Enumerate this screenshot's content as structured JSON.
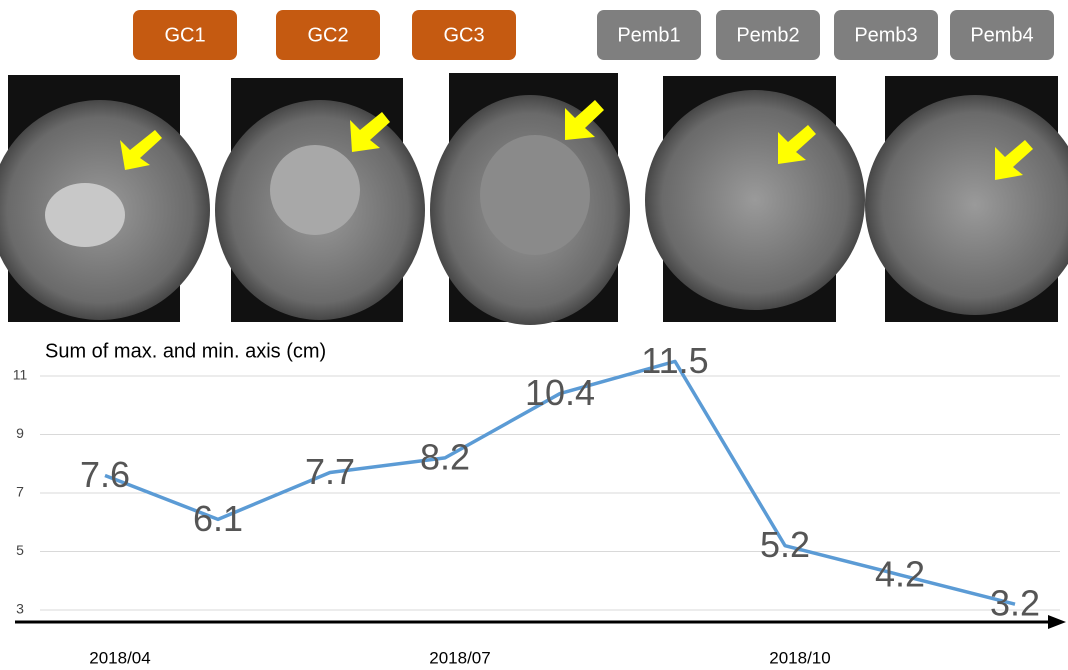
{
  "treatments": [
    {
      "label": "GC1",
      "color": "#c55a11"
    },
    {
      "label": "GC2",
      "color": "#c55a11"
    },
    {
      "label": "GC3",
      "color": "#c55a11"
    },
    {
      "label": "Pemb1",
      "color": "#7f7f7f"
    },
    {
      "label": "Pemb2",
      "color": "#7f7f7f"
    },
    {
      "label": "Pemb3",
      "color": "#7f7f7f"
    },
    {
      "label": "Pemb4",
      "color": "#7f7f7f"
    }
  ],
  "chart_data": {
    "type": "line",
    "y_label": "Sum of max. and min. axis (cm)",
    "categories": [
      "2018/04",
      null,
      null,
      "2018/07",
      null,
      null,
      "2018/10",
      null,
      null
    ],
    "values": [
      7.6,
      6.1,
      7.7,
      8.2,
      10.4,
      11.5,
      5.2,
      4.2,
      3.2
    ],
    "color": "#5b9bd5",
    "ylim": [
      2.6,
      11.8
    ],
    "yticks": [
      3,
      5,
      7,
      9,
      11
    ],
    "grid": true
  }
}
